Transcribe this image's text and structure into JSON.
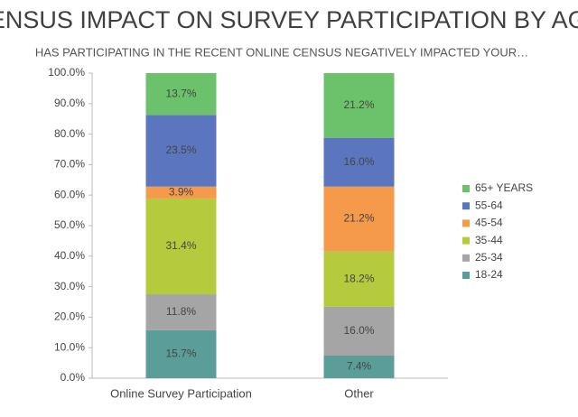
{
  "chart_data": {
    "type": "stacked-bar",
    "title": "CENSUS IMPACT ON SURVEY PARTICIPATION BY AGE",
    "subtitle": "HAS PARTICIPATING IN THE RECENT ONLINE CENSUS NEGATIVELY IMPACTED YOUR…",
    "categories": [
      "Online Survey Participation",
      "Other"
    ],
    "series": [
      {
        "name": "18-24",
        "color": "#5b9e99",
        "values": [
          15.7,
          7.4
        ],
        "value_labels": [
          "15.7%",
          "7.4%"
        ]
      },
      {
        "name": "25-34",
        "color": "#a5a5a5",
        "values": [
          11.8,
          16.0
        ],
        "value_labels": [
          "11.8%",
          "16.0%"
        ]
      },
      {
        "name": "35-44",
        "color": "#b5cb3d",
        "values": [
          31.4,
          18.2
        ],
        "value_labels": [
          "31.4%",
          "18.2%"
        ]
      },
      {
        "name": "45-54",
        "color": "#f5994b",
        "values": [
          3.9,
          21.2
        ],
        "value_labels": [
          "3.9%",
          "21.2%"
        ]
      },
      {
        "name": "55-64",
        "color": "#5b76bf",
        "values": [
          23.5,
          16.0
        ],
        "value_labels": [
          "23.5%",
          "16.0%"
        ]
      },
      {
        "name": "65+ YEARS",
        "color": "#6cc26b",
        "values": [
          13.7,
          21.2
        ],
        "value_labels": [
          "13.7%",
          "21.2%"
        ]
      }
    ],
    "ylim": [
      0,
      100
    ],
    "yticks": [
      {
        "value": 0,
        "label": "0.0%"
      },
      {
        "value": 10,
        "label": "10.0%"
      },
      {
        "value": 20,
        "label": "20.0%"
      },
      {
        "value": 30,
        "label": "30.0%"
      },
      {
        "value": 40,
        "label": "40.0%"
      },
      {
        "value": 50,
        "label": "50.0%"
      },
      {
        "value": 60,
        "label": "60.0%"
      },
      {
        "value": 70,
        "label": "70.0%"
      },
      {
        "value": 80,
        "label": "80.0%"
      },
      {
        "value": 90,
        "label": "90.0%"
      },
      {
        "value": 100,
        "label": "100.0%"
      }
    ],
    "grid": false,
    "legend": "right"
  }
}
